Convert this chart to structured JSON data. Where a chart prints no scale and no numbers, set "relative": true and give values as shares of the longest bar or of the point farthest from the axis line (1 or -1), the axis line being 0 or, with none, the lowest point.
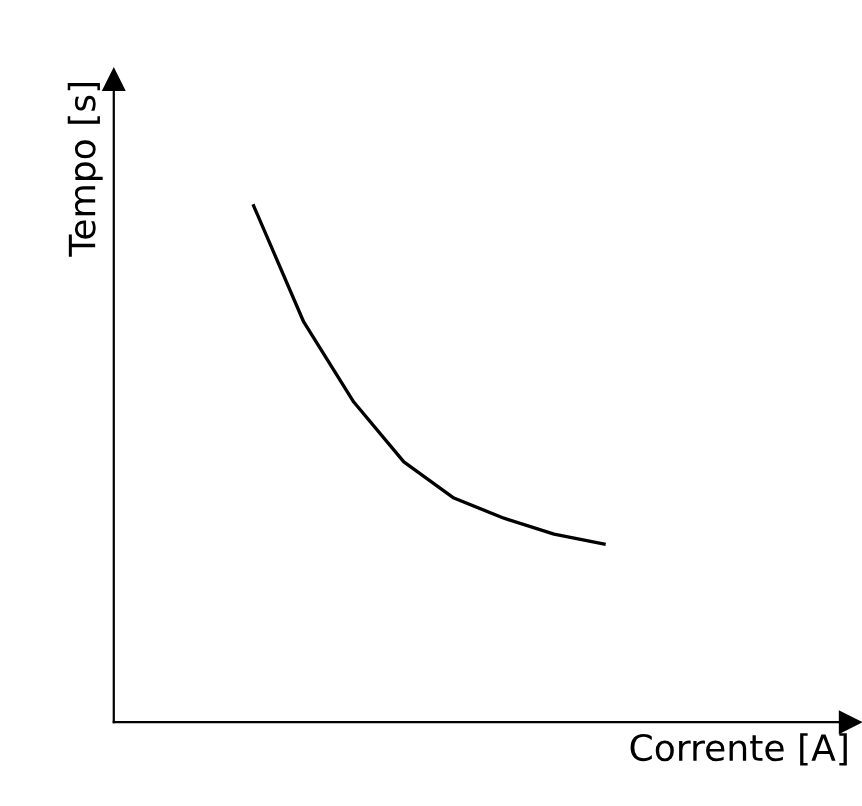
{
  "chart_data": {
    "type": "line",
    "relative": true,
    "xlabel": "Corrente [A]",
    "ylabel": "Tempo [s]",
    "categories": [
      null,
      null,
      null,
      null,
      null,
      null,
      null,
      null
    ],
    "series": [
      {
        "color": "#000000",
        "values": [
          1,
          0.775,
          0.62,
          0.504,
          0.434,
          0.395,
          0.364,
          0.345
        ]
      }
    ],
    "legend": false,
    "marker": "none",
    "line_style": "solid"
  }
}
